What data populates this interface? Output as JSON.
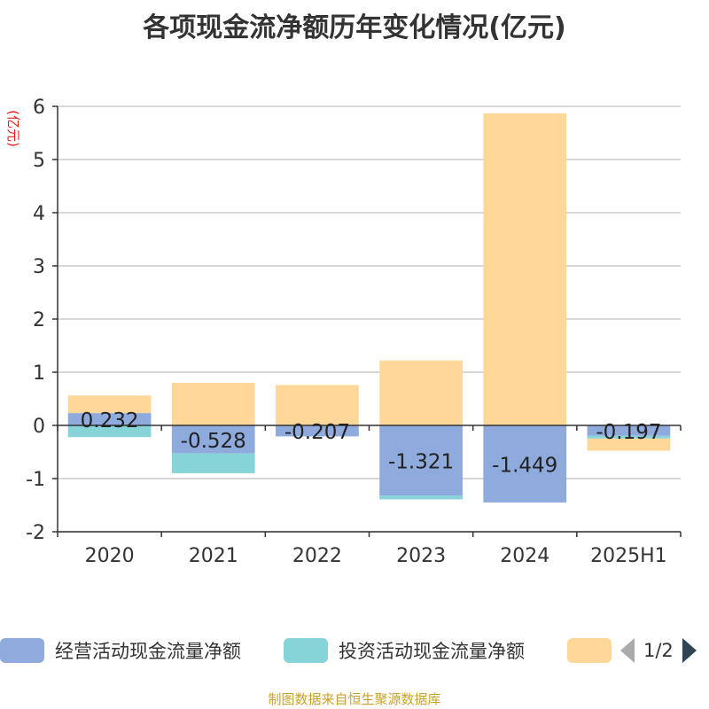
{
  "chart_data": {
    "type": "bar",
    "stacked": true,
    "title": "各项现金流净额历年变化情况(亿元)",
    "ylabel": "(亿元)",
    "categories": [
      "2020",
      "2021",
      "2022",
      "2023",
      "2024",
      "2025H1"
    ],
    "ylim": [
      -2,
      6
    ],
    "yticks": [
      -2,
      -1,
      0,
      1,
      2,
      3,
      4,
      5,
      6
    ],
    "grid": true,
    "series": [
      {
        "name": "经营活动现金流量净额",
        "color": "#8faadc",
        "values": [
          0.232,
          -0.528,
          -0.207,
          -1.321,
          -1.449,
          -0.197
        ],
        "labels": [
          "0.232",
          "-0.528",
          "-0.207",
          "-1.321",
          "-1.449",
          "-0.197"
        ]
      },
      {
        "name": "投资活动现金流量净额",
        "color": "#86d4d8",
        "values": [
          -0.22,
          -0.37,
          0,
          -0.07,
          0,
          -0.05
        ]
      },
      {
        "name": "",
        "color": "#ffd899",
        "values": [
          0.33,
          0.8,
          0.76,
          1.22,
          5.87,
          -0.23
        ]
      }
    ],
    "legend": {
      "position": "bottom",
      "page": "1/2"
    }
  },
  "source": "制图数据来自恒生聚源数据库"
}
